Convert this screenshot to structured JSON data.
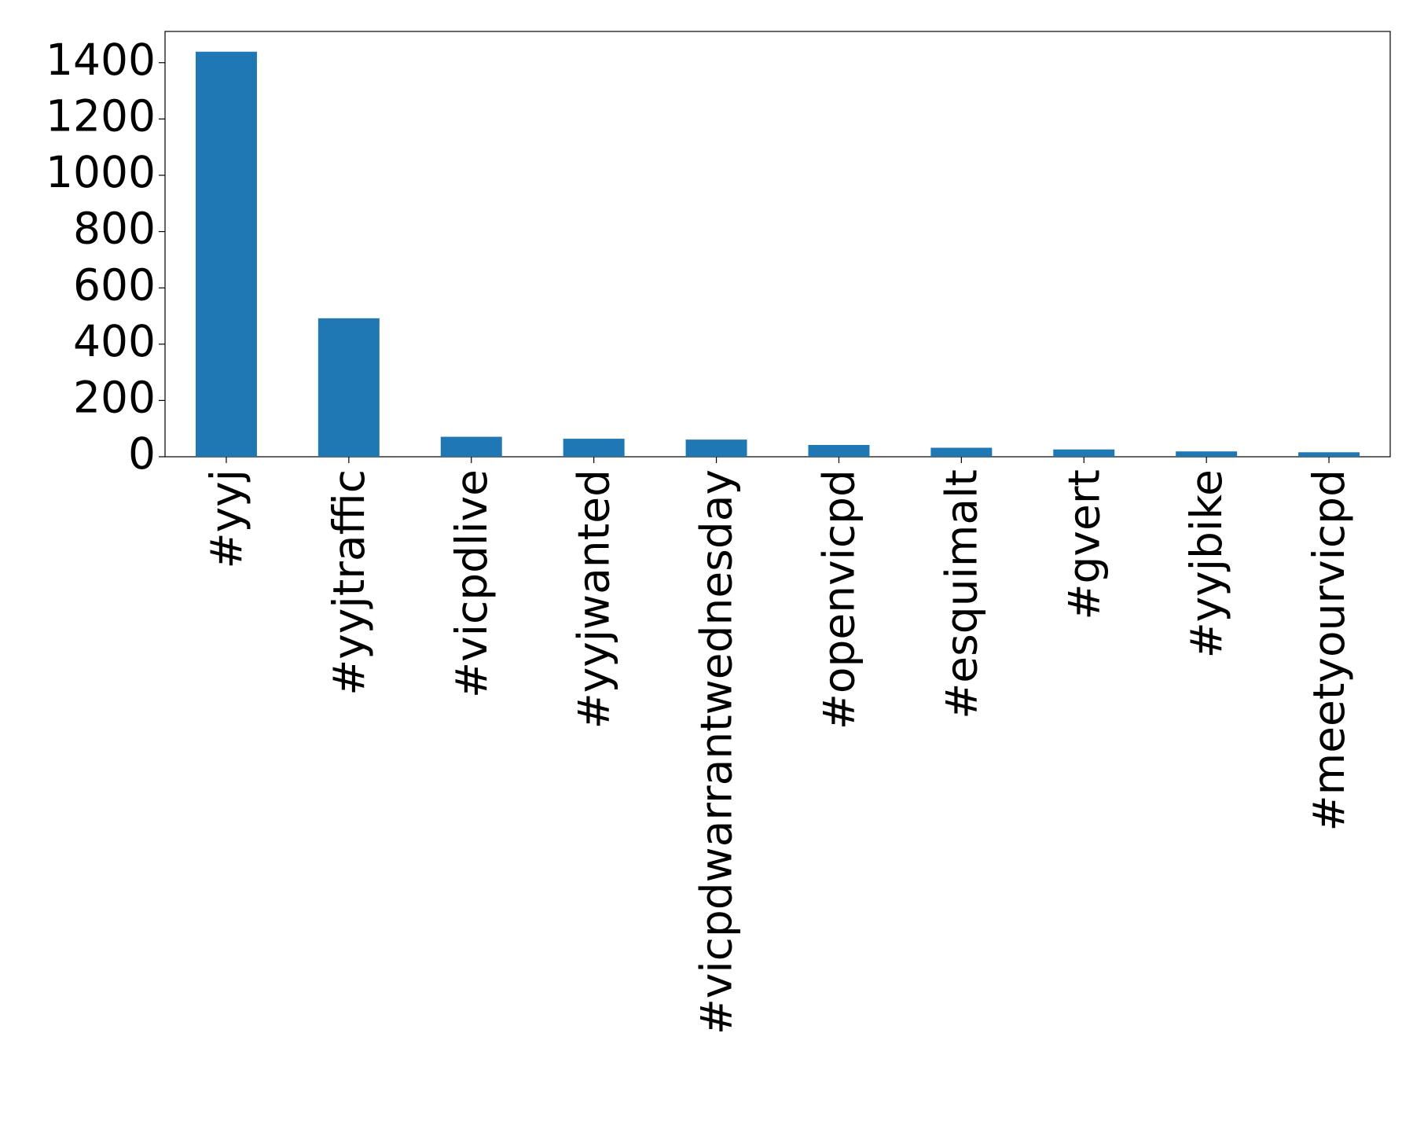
{
  "chart_data": {
    "type": "bar",
    "categories": [
      "#yyj",
      "#yyjtraffic",
      "#vicpdlive",
      "#yyjwanted",
      "#vicpdwarrantwednesday",
      "#openvicpd",
      "#esquimalt",
      "#gvert",
      "#yyjbike",
      "#meetyourvicpd"
    ],
    "values": [
      1439,
      492,
      71,
      64,
      61,
      42,
      32,
      26,
      19,
      16
    ],
    "color": "#1f77b4",
    "ylim": [
      0,
      1511
    ],
    "yticks": [
      0,
      200,
      400,
      600,
      800,
      1000,
      1200,
      1400
    ],
    "grid": false
  }
}
